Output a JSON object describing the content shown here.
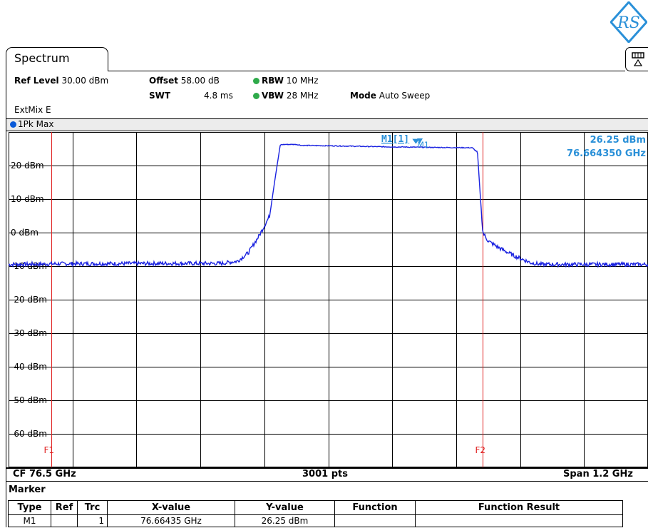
{
  "logo_text": "RS",
  "tab": {
    "label": "Spectrum"
  },
  "settings": {
    "ref_level_label": "Ref Level",
    "ref_level_value": "30.00 dBm",
    "offset_label": "Offset",
    "offset_value": "58.00 dB",
    "rbw_label": "RBW",
    "rbw_value": "10 MHz",
    "swt_label": "SWT",
    "swt_value": "4.8 ms",
    "vbw_label": "VBW",
    "vbw_value": "28 MHz",
    "mode_label": "Mode",
    "mode_value": "Auto Sweep",
    "ext_mix": "ExtMix E"
  },
  "trace": {
    "label": "1Pk Max",
    "color": "#0a5ad8"
  },
  "chart_data": {
    "type": "line",
    "xlim": [
      75.9,
      77.1
    ],
    "ylim": [
      -70,
      30
    ],
    "x_unit": "GHz",
    "y_unit": "dBm",
    "ytick_labels": [
      "20 dBm",
      "10 dBm",
      "0 dBm",
      "-10 dBm",
      "-20 dBm",
      "-30 dBm",
      "-40 dBm",
      "-50 dBm",
      "-60 dBm"
    ],
    "ytick_values": [
      20,
      10,
      0,
      -10,
      -20,
      -30,
      -40,
      -50,
      -60
    ],
    "grid": true,
    "series": [
      {
        "color": "#1a22e0",
        "x": [
          75.9,
          76.0,
          76.2,
          76.3,
          76.33,
          76.35,
          76.37,
          76.39,
          76.4,
          76.41,
          76.42,
          76.44,
          76.45,
          76.5,
          76.6,
          76.7,
          76.77,
          76.78,
          76.784,
          76.79,
          76.8,
          76.82,
          76.85,
          76.88,
          76.9
        ],
        "y": [
          -9.5,
          -9.3,
          -9.2,
          -9.2,
          -8.5,
          -6.0,
          -1.0,
          5.0,
          16.0,
          26.2,
          26.3,
          26.3,
          26.0,
          25.9,
          25.6,
          25.4,
          25.3,
          24.0,
          14.0,
          0.0,
          -2.5,
          -4.5,
          -7.0,
          -9.0,
          -9.5
        ]
      }
    ],
    "marker": {
      "name": "M1",
      "x": 76.66435,
      "y": 26.25,
      "readout_label": "M1[1]",
      "readout_value": "26.25 dBm",
      "readout_freq": "76.664350 GHz"
    },
    "freq_lines": [
      {
        "label": "F1",
        "x": 75.98
      },
      {
        "label": "F2",
        "x": 76.79
      }
    ],
    "footer": {
      "center_freq": "CF 76.5 GHz",
      "points": "3001 pts",
      "span": "Span 1.2 GHz"
    }
  },
  "marker_table": {
    "title": "Marker",
    "headers": [
      "Type",
      "Ref",
      "Trc",
      "X-value",
      "Y-value",
      "Function",
      "Function Result"
    ],
    "rows": [
      {
        "type": "M1",
        "ref": "",
        "trc": "1",
        "x_value": "76.66435 GHz",
        "y_value": "26.25 dBm",
        "function": "",
        "function_result": ""
      }
    ]
  }
}
